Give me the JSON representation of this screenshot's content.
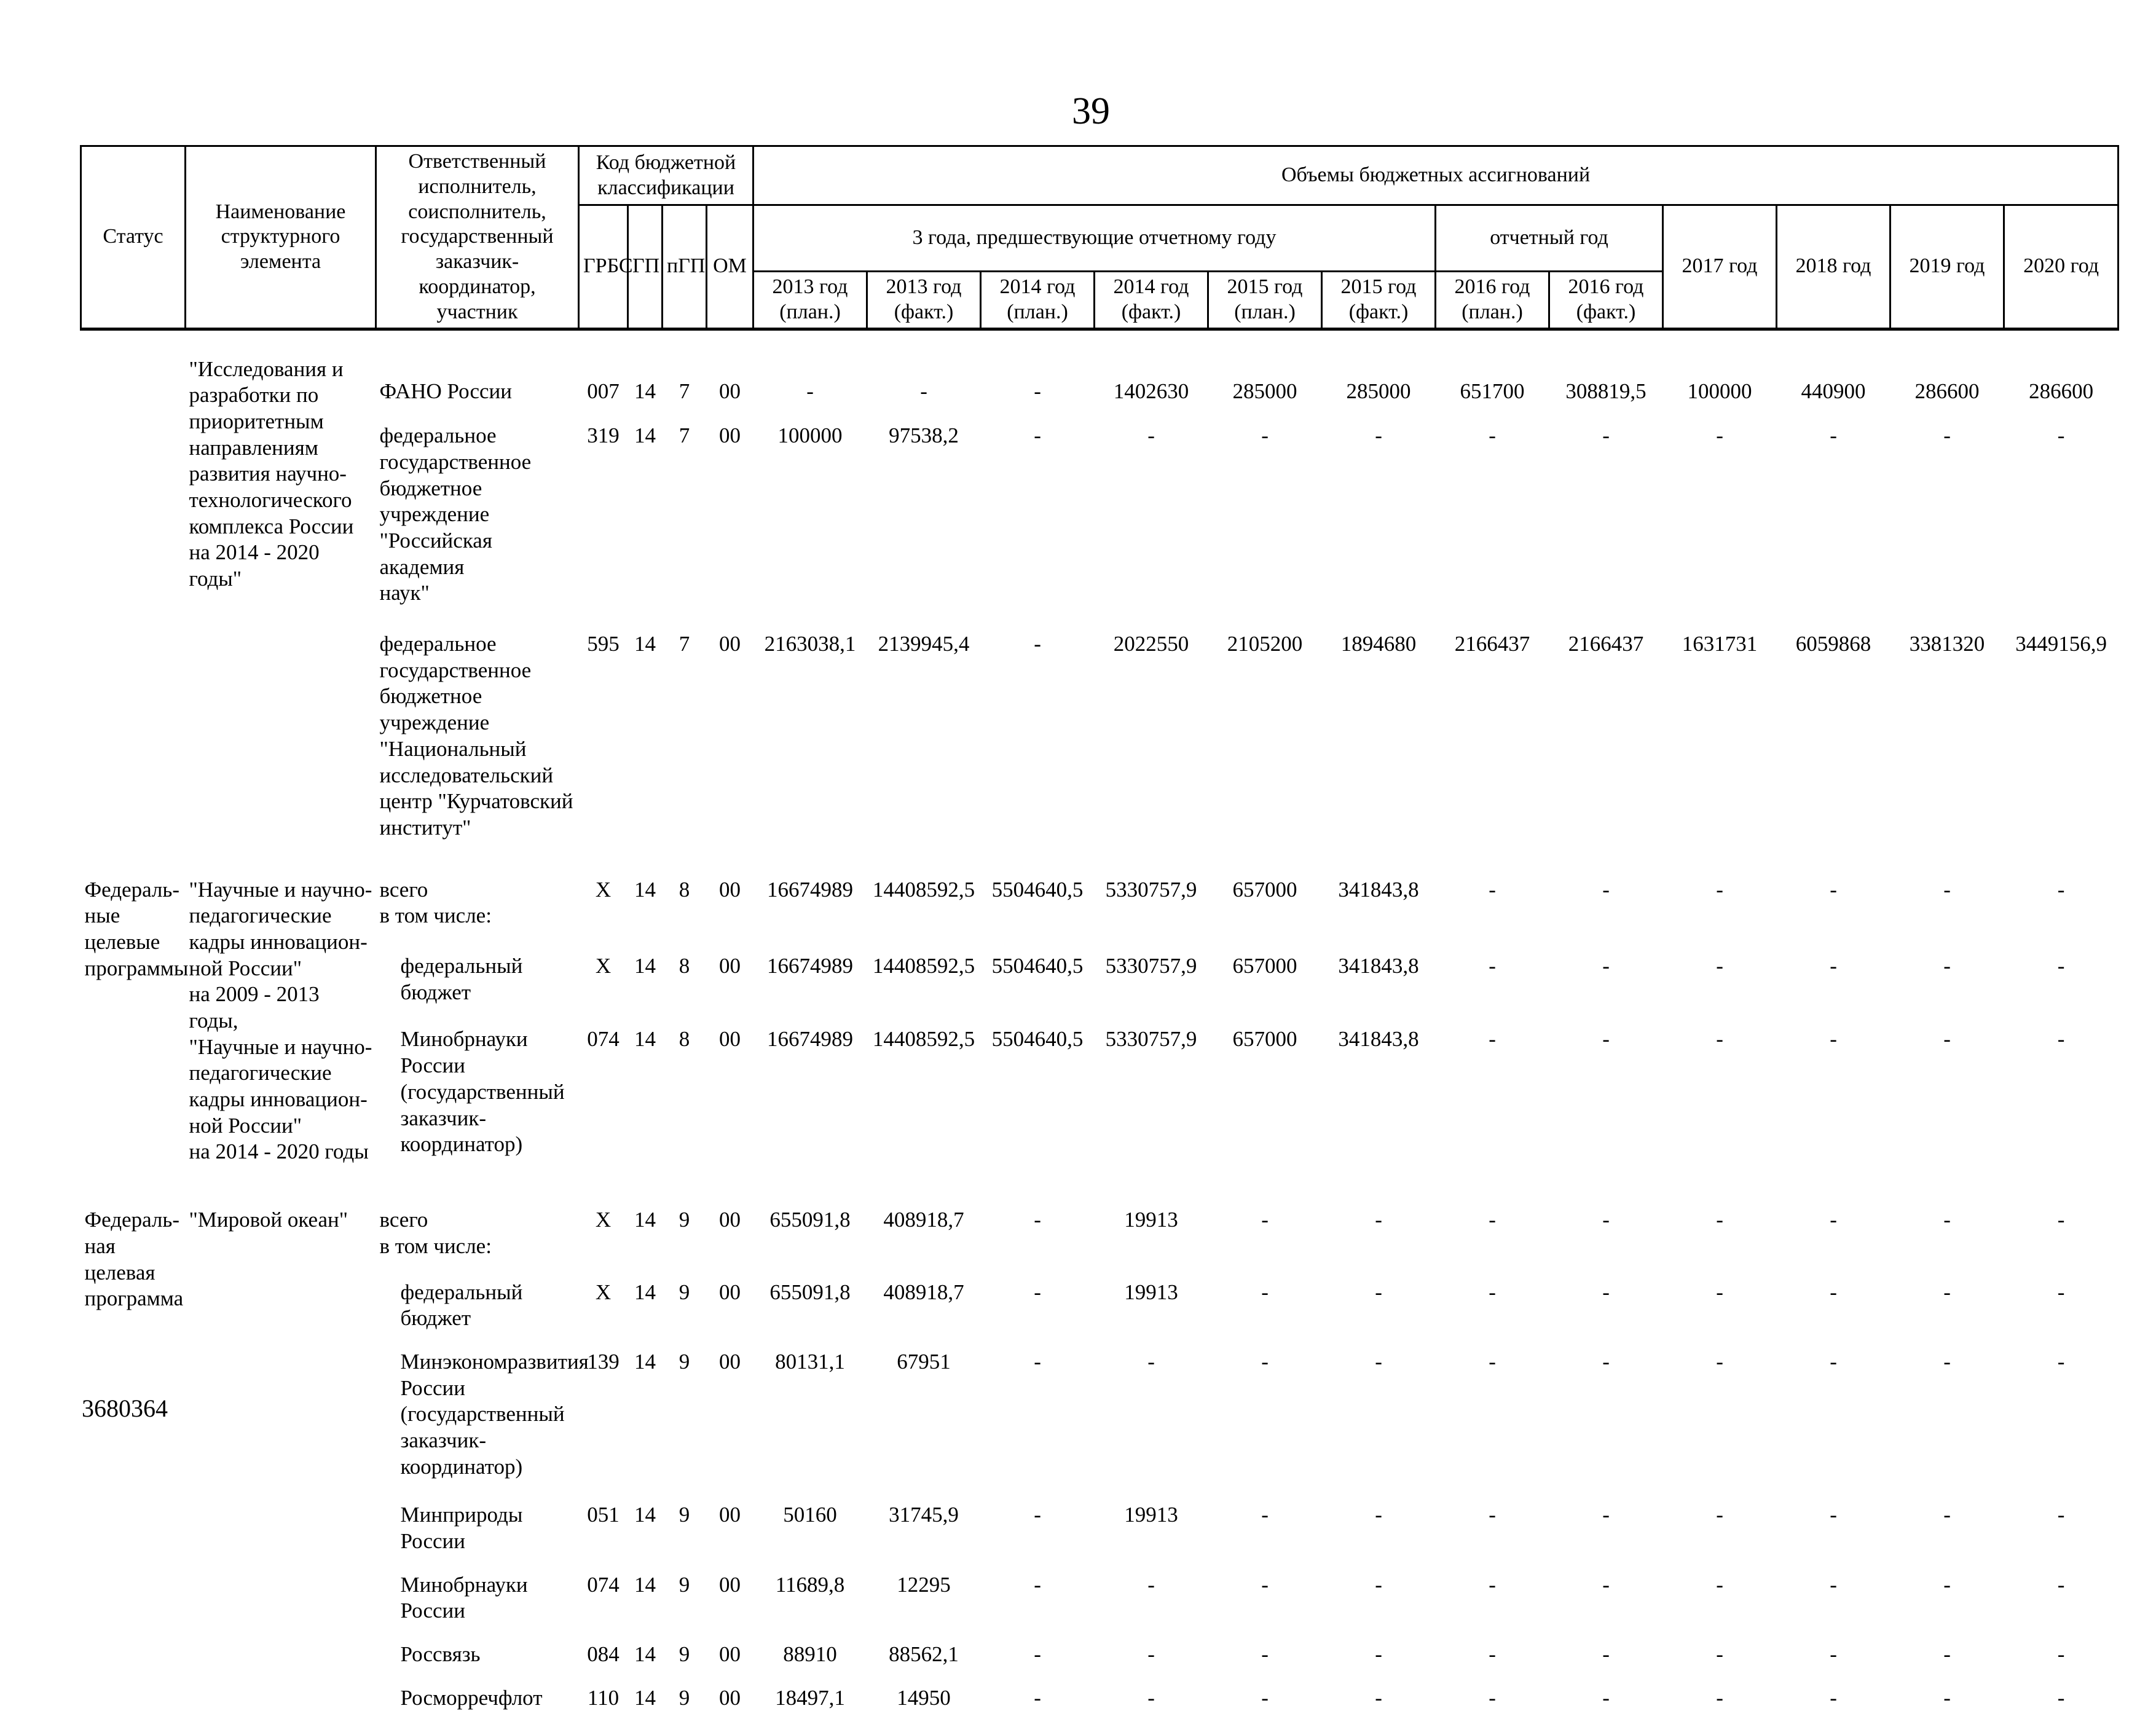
{
  "page": {
    "number": "39",
    "footer_code": "3680364"
  },
  "table": {
    "header": {
      "status_label": "Статус",
      "name_label": "Наименование структурного элемента",
      "executor_label": "Ответственный исполнитель, соисполнитель, государственный заказчик-координатор, участник",
      "code_label": "Код бюджетной классификации",
      "volumes_label": "Объемы бюджетных ассигнований",
      "prev_years_label": "3 года, предшествующие отчетному году",
      "report_year_label": "отчетный год",
      "code_cols": [
        "ГРБС",
        "ГП",
        "пГП",
        "ОМ"
      ],
      "year_cols": [
        "2013 год\n(план.)",
        "2013 год\n(факт.)",
        "2014 год\n(план.)",
        "2014 год\n(факт.)",
        "2015 год\n(план.)",
        "2015 год\n(факт.)",
        "2016 год\n(план.)",
        "2016 год\n(факт.)",
        "2017 год",
        "2018 год",
        "2019 год",
        "2020 год"
      ]
    },
    "groups": [
      {
        "status": "",
        "name": "\"Исследования и\nразработки по\nприоритетным\nнаправлениям\nразвития научно-\nтехнологического\nкомплекса России\nна 2014 - 2020 годы\"",
        "rows": [
          {
            "executor": "ФАНО России",
            "indent": false,
            "codes": [
              "007",
              "14",
              "7",
              "00"
            ],
            "values": [
              "-",
              "-",
              "-",
              "1402630",
              "285000",
              "285000",
              "651700",
              "308819,5",
              "100000",
              "440900",
              "286600",
              "286600"
            ]
          },
          {
            "executor": "федеральное\nгосударственное\nбюджетное\nучреждение\n\"Российская академия\nнаук\"",
            "indent": false,
            "codes": [
              "319",
              "14",
              "7",
              "00"
            ],
            "values": [
              "100000",
              "97538,2",
              "-",
              "-",
              "-",
              "-",
              "-",
              "-",
              "-",
              "-",
              "-",
              "-"
            ]
          },
          {
            "executor": "федеральное\nгосударственное\nбюджетное\nучреждение\n\"Национальный\nисследовательский\nцентр \"Курчатовский\nинститут\"",
            "indent": false,
            "codes": [
              "595",
              "14",
              "7",
              "00"
            ],
            "values": [
              "2163038,1",
              "2139945,4",
              "-",
              "2022550",
              "2105200",
              "1894680",
              "2166437",
              "2166437",
              "1631731",
              "6059868",
              "3381320",
              "3449156,9"
            ]
          }
        ]
      },
      {
        "status": "Федераль-\nные\nцелевые\nпрограммы",
        "name": "\"Научные и научно-\nпедагогические\nкадры инновацион-\nной России\"\nна 2009 - 2013 годы,\n\"Научные и научно-\nпедагогические\nкадры инновацион-\nной России\"\nна 2014 - 2020 годы",
        "rows": [
          {
            "executor": "всего\nв том числе:",
            "indent": false,
            "codes": [
              "X",
              "14",
              "8",
              "00"
            ],
            "values": [
              "16674989",
              "14408592,5",
              "5504640,5",
              "5330757,9",
              "657000",
              "341843,8",
              "-",
              "-",
              "-",
              "-",
              "-",
              "-"
            ]
          },
          {
            "executor": "федеральный бюджет",
            "indent": true,
            "codes": [
              "X",
              "14",
              "8",
              "00"
            ],
            "values": [
              "16674989",
              "14408592,5",
              "5504640,5",
              "5330757,9",
              "657000",
              "341843,8",
              "-",
              "-",
              "-",
              "-",
              "-",
              "-"
            ]
          },
          {
            "executor": "Минобрнауки России\n(государственный\nзаказчик-\nкоординатор)",
            "indent": true,
            "codes": [
              "074",
              "14",
              "8",
              "00"
            ],
            "values": [
              "16674989",
              "14408592,5",
              "5504640,5",
              "5330757,9",
              "657000",
              "341843,8",
              "-",
              "-",
              "-",
              "-",
              "-",
              "-"
            ]
          }
        ]
      },
      {
        "status": "Федераль-\nная целевая\nпрограмма",
        "name": "\"Мировой океан\"",
        "rows": [
          {
            "executor": "всего\nв том числе:",
            "indent": false,
            "codes": [
              "X",
              "14",
              "9",
              "00"
            ],
            "values": [
              "655091,8",
              "408918,7",
              "-",
              "19913",
              "-",
              "-",
              "-",
              "-",
              "-",
              "-",
              "-",
              "-"
            ]
          },
          {
            "executor": "федеральный бюджет",
            "indent": true,
            "codes": [
              "X",
              "14",
              "9",
              "00"
            ],
            "values": [
              "655091,8",
              "408918,7",
              "-",
              "19913",
              "-",
              "-",
              "-",
              "-",
              "-",
              "-",
              "-",
              "-"
            ]
          },
          {
            "executor": "Минэкономразвития\nРоссии\n(государственный\nзаказчик-\nкоординатор)",
            "indent": true,
            "codes": [
              "139",
              "14",
              "9",
              "00"
            ],
            "values": [
              "80131,1",
              "67951",
              "-",
              "-",
              "-",
              "-",
              "-",
              "-",
              "-",
              "-",
              "-",
              "-"
            ]
          },
          {
            "executor": "Минприроды России",
            "indent": true,
            "codes": [
              "051",
              "14",
              "9",
              "00"
            ],
            "values": [
              "50160",
              "31745,9",
              "-",
              "19913",
              "-",
              "-",
              "-",
              "-",
              "-",
              "-",
              "-",
              "-"
            ]
          },
          {
            "executor": "Минобрнауки России",
            "indent": true,
            "codes": [
              "074",
              "14",
              "9",
              "00"
            ],
            "values": [
              "11689,8",
              "12295",
              "-",
              "-",
              "-",
              "-",
              "-",
              "-",
              "-",
              "-",
              "-",
              "-"
            ]
          },
          {
            "executor": "Россвязь",
            "indent": true,
            "codes": [
              "084",
              "14",
              "9",
              "00"
            ],
            "values": [
              "88910",
              "88562,1",
              "-",
              "-",
              "-",
              "-",
              "-",
              "-",
              "-",
              "-",
              "-",
              "-"
            ]
          },
          {
            "executor": "Росморречфлот",
            "indent": true,
            "codes": [
              "110",
              "14",
              "9",
              "00"
            ],
            "values": [
              "18497,1",
              "14950",
              "-",
              "-",
              "-",
              "-",
              "-",
              "-",
              "-",
              "-",
              "-",
              "-"
            ]
          }
        ]
      }
    ]
  }
}
